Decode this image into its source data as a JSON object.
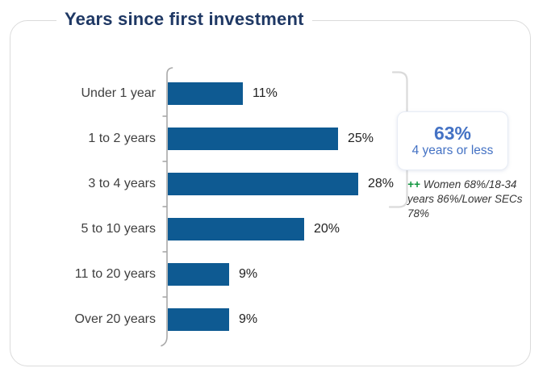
{
  "card": {
    "title": "Years since first investment"
  },
  "chart_data": {
    "type": "bar",
    "orientation": "horizontal",
    "title": "Years since first investment",
    "categories": [
      "Under 1 year",
      "1 to 2 years",
      "3 to 4 years",
      "5 to 10 years",
      "11 to 20 years",
      "Over 20 years"
    ],
    "values": [
      11,
      25,
      28,
      20,
      9,
      9
    ],
    "value_labels": [
      "11%",
      "25%",
      "28%",
      "20%",
      "9%",
      "9%"
    ],
    "xlabel": "",
    "ylabel": "",
    "xlim": [
      0,
      28
    ],
    "grid": false,
    "legend": false,
    "data_labels": "outside-end"
  },
  "callout": {
    "headline": "63%",
    "subline": "4 years or less"
  },
  "annotation": {
    "marker": "++",
    "text": "Women 68%/18-34 years 86%/Lower SECs 78%"
  },
  "colors": {
    "bar": "#0e5a92",
    "title": "#1f3864",
    "category_label": "#3f3f3f",
    "value_label": "#1f1f1f",
    "callout_text": "#4472c4",
    "annotation_marker": "#12963f",
    "annotation_text": "#363636",
    "card_border": "#dbdbdb",
    "axis_line": "#a9a9a9",
    "bracket": "#dadada"
  }
}
